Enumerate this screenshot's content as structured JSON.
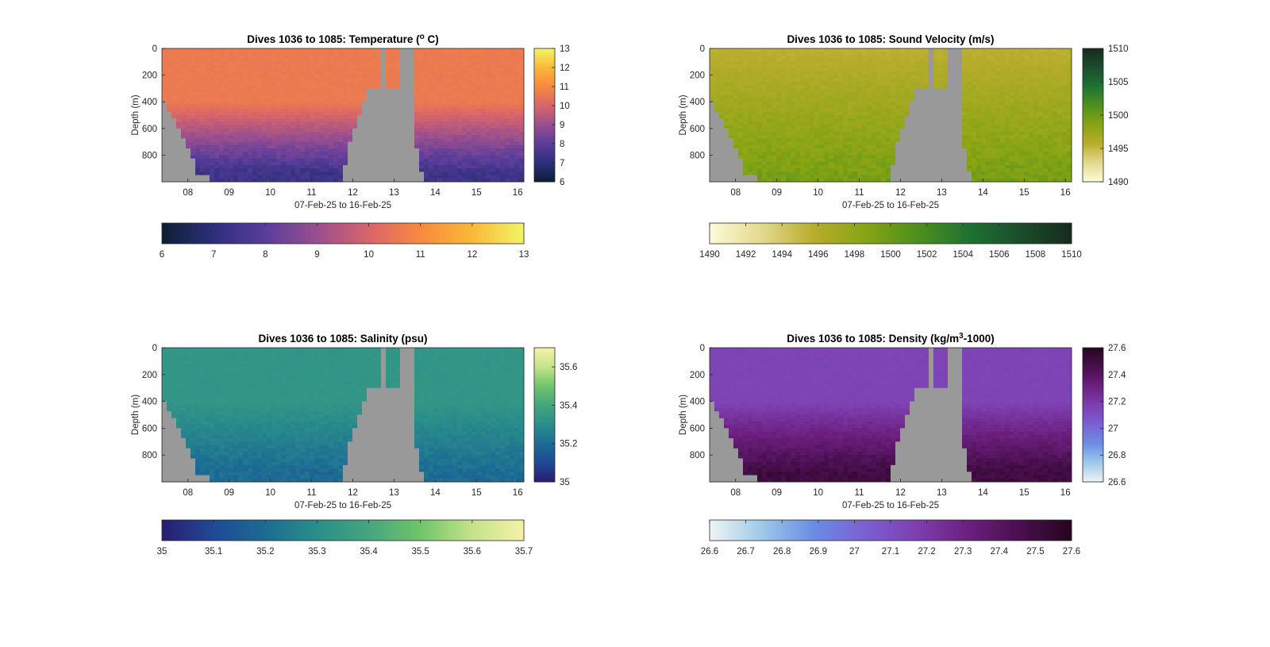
{
  "figure": {
    "nodata_color": "#999999",
    "x_ticks": [
      "08",
      "09",
      "10",
      "11",
      "12",
      "13",
      "14",
      "15",
      "16"
    ],
    "y_ticks": [
      "0",
      "200",
      "400",
      "600",
      "800"
    ]
  },
  "chart_data": [
    {
      "type": "heatmap",
      "title_main": "Dives 1036 to 1085: Temperature (",
      "title_sup": "o",
      "title_tail": " C)",
      "xlabel": "07-Feb-25 to 16-Feb-25",
      "ylabel": "Depth (m)",
      "x_ticks": [
        "08",
        "09",
        "10",
        "11",
        "12",
        "13",
        "14",
        "15",
        "16"
      ],
      "xlim": [
        "07-Feb-25",
        "16-Feb-25"
      ],
      "y_ticks": [
        0,
        200,
        400,
        600,
        800
      ],
      "ylim": [
        0,
        1000
      ],
      "y_reversed": true,
      "clim": [
        6,
        13
      ],
      "side_colorbar_ticks": [
        "6",
        "7",
        "8",
        "9",
        "10",
        "11",
        "12",
        "13"
      ],
      "bottom_colorbar_ticks": [
        "6",
        "7",
        "8",
        "9",
        "10",
        "11",
        "12",
        "13"
      ],
      "colormap": [
        "#0b1f33",
        "#2d2f7c",
        "#5a3d9a",
        "#9a4f8f",
        "#d8656a",
        "#f8893f",
        "#f9b938",
        "#f3f465"
      ],
      "surface_value": 10.6,
      "deep_value": 7.4,
      "gradient_depths": [
        400,
        930
      ]
    },
    {
      "type": "heatmap",
      "title_main": "Dives 1036 to 1085: Sound Velocity (m/s)",
      "title_sup": "",
      "title_tail": "",
      "xlabel": "07-Feb-25 to 16-Feb-25",
      "ylabel": "Depth (m)",
      "x_ticks": [
        "08",
        "09",
        "10",
        "11",
        "12",
        "13",
        "14",
        "15",
        "16"
      ],
      "xlim": [
        "07-Feb-25",
        "16-Feb-25"
      ],
      "y_ticks": [
        0,
        200,
        400,
        600,
        800
      ],
      "ylim": [
        0,
        1000
      ],
      "y_reversed": true,
      "clim": [
        1490,
        1510
      ],
      "side_colorbar_ticks": [
        "1490",
        "1495",
        "1500",
        "1505",
        "1510"
      ],
      "bottom_colorbar_ticks": [
        "1490",
        "1492",
        "1494",
        "1496",
        "1498",
        "1500",
        "1502",
        "1504",
        "1506",
        "1508",
        "1510"
      ],
      "colormap": [
        "#fefbd8",
        "#e3d98e",
        "#b9ad2c",
        "#87a413",
        "#4f901f",
        "#1f7332",
        "#1b4d2c",
        "#162b1f"
      ],
      "surface_value": 1495.5,
      "deep_value": 1499.5,
      "gradient_depths": [
        0,
        1000
      ]
    },
    {
      "type": "heatmap",
      "title_main": "Dives 1036 to 1085: Salinity (psu)",
      "title_sup": "",
      "title_tail": "",
      "xlabel": "07-Feb-25 to 16-Feb-25",
      "ylabel": "Depth (m)",
      "x_ticks": [
        "08",
        "09",
        "10",
        "11",
        "12",
        "13",
        "14",
        "15",
        "16"
      ],
      "xlim": [
        "07-Feb-25",
        "16-Feb-25"
      ],
      "y_ticks": [
        0,
        200,
        400,
        600,
        800
      ],
      "ylim": [
        0,
        1000
      ],
      "y_reversed": true,
      "clim": [
        35,
        35.7
      ],
      "side_colorbar_ticks": [
        "35",
        "35.2",
        "35.4",
        "35.6"
      ],
      "bottom_colorbar_ticks": [
        "35",
        "35.1",
        "35.2",
        "35.3",
        "35.4",
        "35.5",
        "35.6",
        "35.7"
      ],
      "colormap": [
        "#2a1d70",
        "#1f4a95",
        "#1c6c94",
        "#2a8f8a",
        "#45a57e",
        "#70c46a",
        "#c5e38a",
        "#f6f1a6"
      ],
      "surface_value": 35.33,
      "deep_value": 35.2,
      "gradient_depths": [
        400,
        930
      ]
    },
    {
      "type": "heatmap",
      "title_main": "Dives 1036 to 1085: Density (kg/m",
      "title_sup": "3",
      "title_tail": "-1000)",
      "xlabel": "07-Feb-25 to 16-Feb-25",
      "ylabel": "Depth (m)",
      "x_ticks": [
        "08",
        "09",
        "10",
        "11",
        "12",
        "13",
        "14",
        "15",
        "16"
      ],
      "xlim": [
        "07-Feb-25",
        "16-Feb-25"
      ],
      "y_ticks": [
        0,
        200,
        400,
        600,
        800
      ],
      "ylim": [
        0,
        1000
      ],
      "y_reversed": true,
      "clim": [
        26.6,
        27.6
      ],
      "side_colorbar_ticks": [
        "26.6",
        "26.8",
        "27",
        "27.2",
        "27.4",
        "27.6"
      ],
      "bottom_colorbar_ticks": [
        "26.6",
        "26.7",
        "26.8",
        "26.9",
        "27",
        "27.1",
        "27.2",
        "27.3",
        "27.4",
        "27.5",
        "27.6"
      ],
      "colormap": [
        "#eef4f5",
        "#9ec9e8",
        "#6a8ee4",
        "#7b60d2",
        "#7e3fb0",
        "#6c1f7f",
        "#4a0f4f",
        "#26061f"
      ],
      "surface_value": 27.15,
      "deep_value": 27.5,
      "gradient_depths": [
        400,
        930
      ]
    }
  ]
}
